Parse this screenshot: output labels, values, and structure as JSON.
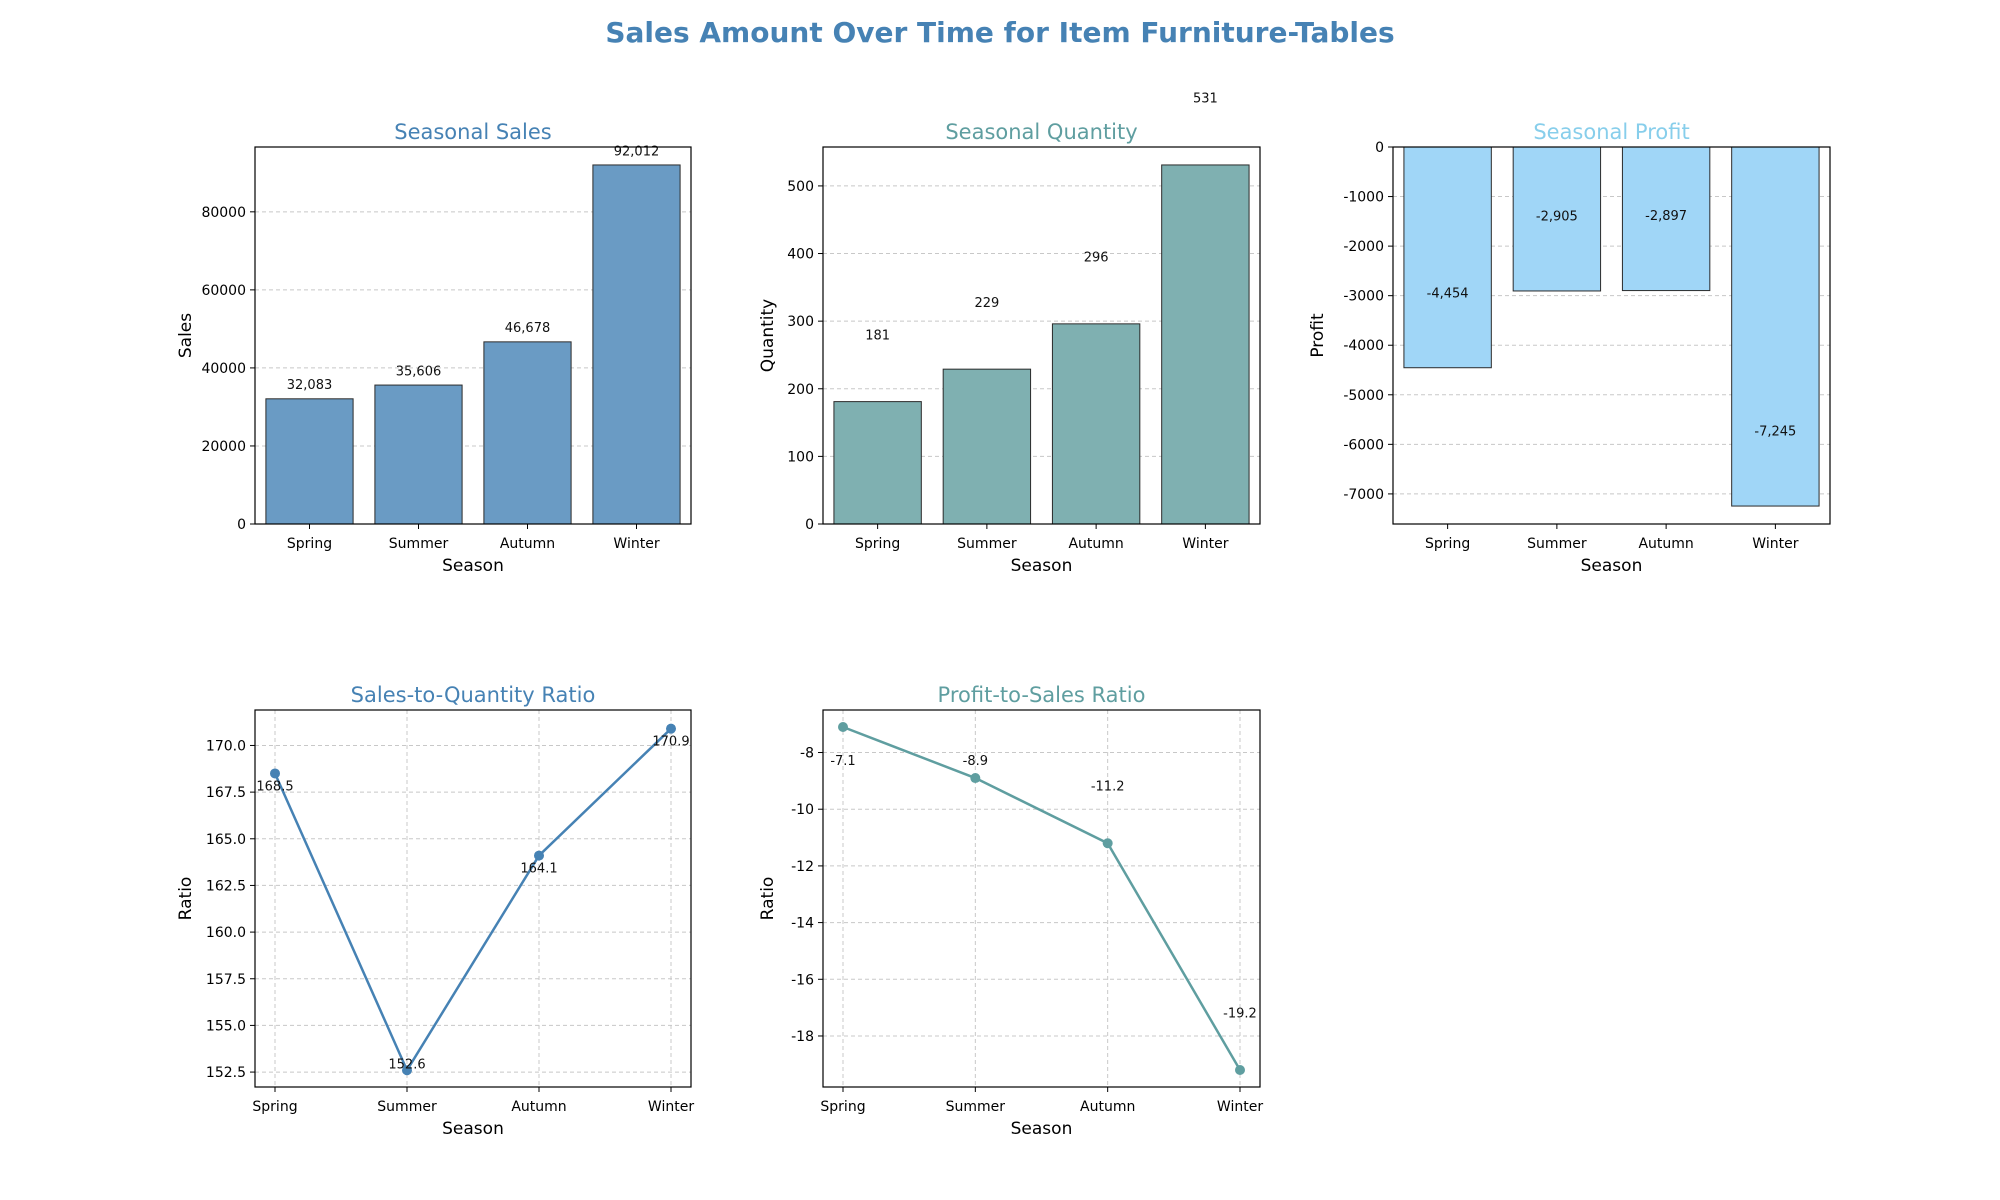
{
  "title": "Sales Amount Over Time for Item Furniture-Tables",
  "chart_data": [
    {
      "type": "bar",
      "title": "Seasonal Sales",
      "title_color": "#4682B4",
      "xlabel": "Season",
      "ylabel": "Sales",
      "categories": [
        "Spring",
        "Summer",
        "Autumn",
        "Winter"
      ],
      "values": [
        32083,
        35606,
        46678,
        92012
      ],
      "data_labels": [
        "32,083",
        "35,606",
        "46,678",
        "92,012"
      ],
      "ylim": [
        0,
        96613
      ],
      "yticks": [
        0,
        20000,
        40000,
        60000,
        80000
      ],
      "label_offset": 3500,
      "bar_color": "#6A9BC4",
      "grid": true
    },
    {
      "type": "bar",
      "title": "Seasonal Quantity",
      "title_color": "#5F9EA0",
      "xlabel": "Season",
      "ylabel": "Quantity",
      "categories": [
        "Spring",
        "Summer",
        "Autumn",
        "Winter"
      ],
      "values": [
        181,
        229,
        296,
        531
      ],
      "data_labels": [
        "181",
        "229",
        "296",
        "531"
      ],
      "ylim": [
        0,
        557.55
      ],
      "yticks": [
        0,
        100,
        200,
        300,
        400,
        500
      ],
      "label_offset": 98,
      "bar_color": "#7FB0B1",
      "grid": true
    },
    {
      "type": "bar",
      "title": "Seasonal Profit",
      "title_color": "#87CEEB",
      "xlabel": "Season",
      "ylabel": "Profit",
      "categories": [
        "Spring",
        "Summer",
        "Autumn",
        "Winter"
      ],
      "values": [
        -4454,
        -2905,
        -2897,
        -7245
      ],
      "data_labels": [
        "-4,454",
        "-2,905",
        "-2,897",
        "-7,245"
      ],
      "ylim": [
        -7607.25,
        0
      ],
      "yticks": [
        0,
        -1000,
        -2000,
        -3000,
        -4000,
        -5000,
        -6000,
        -7000
      ],
      "label_offset": 1500,
      "bar_color": "#A0D6F7",
      "grid": true
    },
    {
      "type": "line",
      "title": "Sales-to-Quantity Ratio",
      "title_color": "#4682B4",
      "xlabel": "Season",
      "ylabel": "Ratio",
      "categories": [
        "Spring",
        "Summer",
        "Autumn",
        "Winter"
      ],
      "values": [
        168.5,
        152.6,
        164.1,
        170.9
      ],
      "data_labels": [
        "168.5",
        "152.6",
        "164.1",
        "170.9"
      ],
      "ylim": [
        151.7,
        171.9
      ],
      "yticks": [
        152.5,
        155.0,
        157.5,
        160.0,
        162.5,
        165.0,
        167.5,
        170.0
      ],
      "label_offsets": [
        -0.7,
        0.3,
        -0.7,
        -0.7
      ],
      "line_color": "#4682B4",
      "grid": true
    },
    {
      "type": "line",
      "title": "Profit-to-Sales Ratio",
      "title_color": "#5F9EA0",
      "xlabel": "Season",
      "ylabel": "Ratio",
      "categories": [
        "Spring",
        "Summer",
        "Autumn",
        "Winter"
      ],
      "values": [
        -7.1,
        -8.9,
        -11.2,
        -19.2
      ],
      "data_labels": [
        "-7.1",
        "-8.9",
        "-11.2",
        "-19.2"
      ],
      "ylim": [
        -19.8,
        -6.5
      ],
      "yticks": [
        -8,
        -10,
        -12,
        -14,
        -16,
        -18
      ],
      "label_offsets": [
        -1.2,
        0.6,
        2.0,
        2.0
      ],
      "line_color": "#5F9EA0",
      "grid": true
    }
  ]
}
